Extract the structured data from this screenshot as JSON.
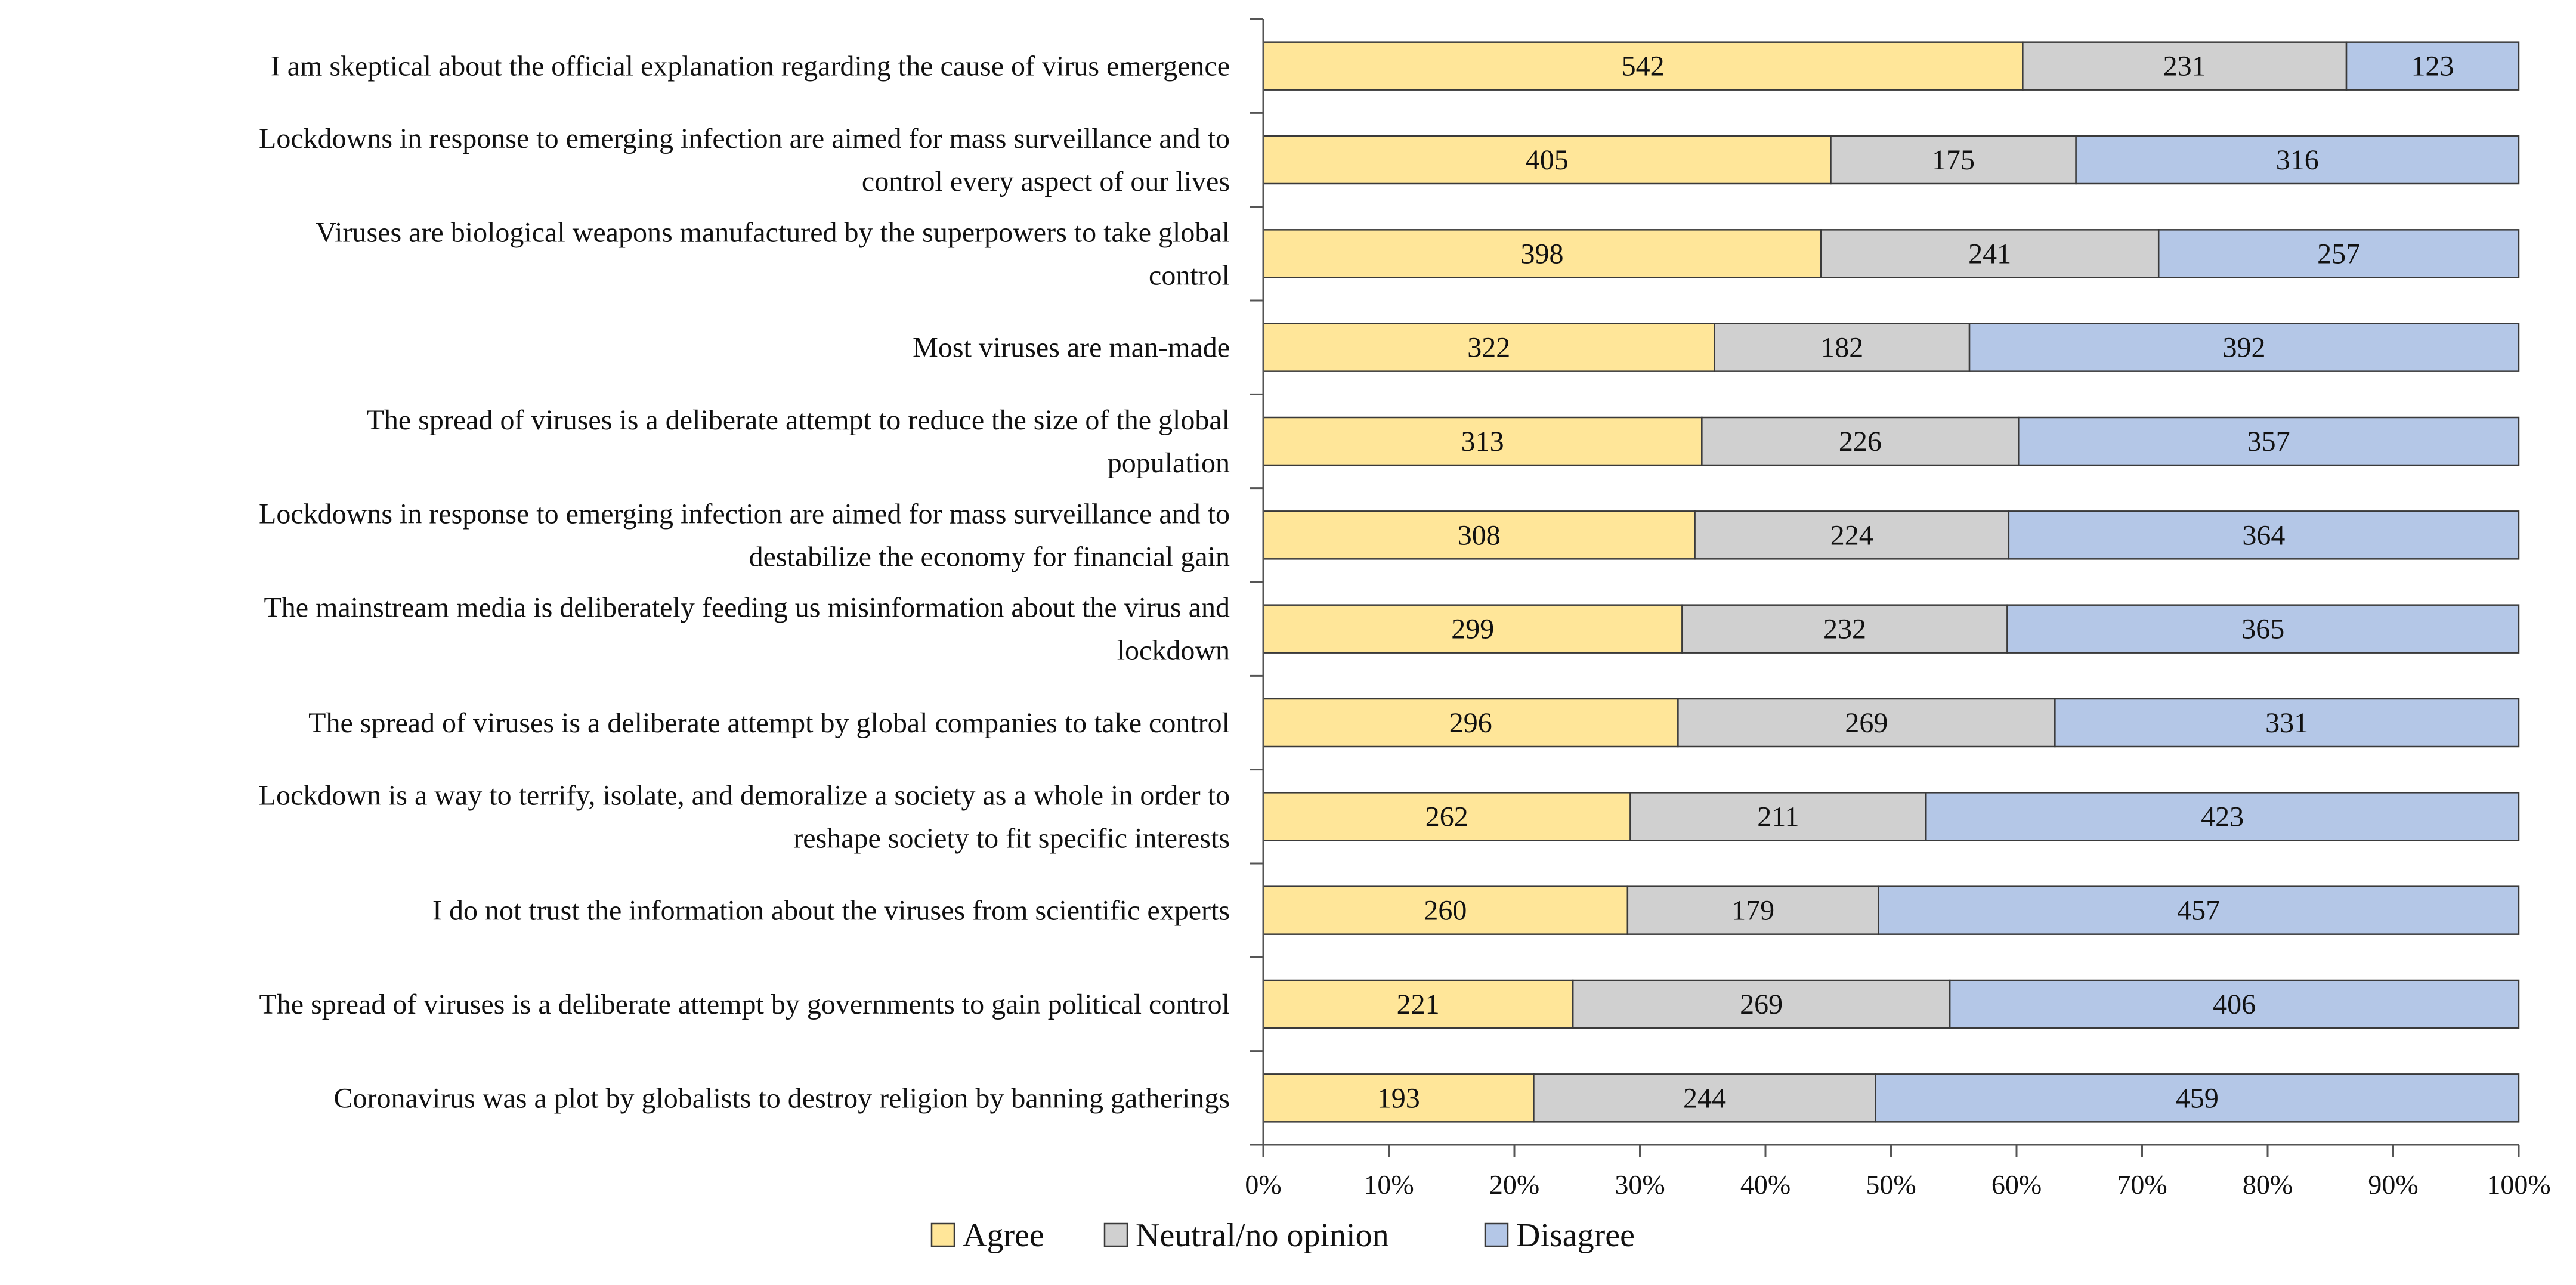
{
  "chart_data": {
    "type": "bar",
    "orientation": "horizontal",
    "stacking": "percent",
    "title": "",
    "xlabel": "",
    "ylabel": "",
    "xlim": [
      0,
      100
    ],
    "x_ticks": [
      "0%",
      "10%",
      "20%",
      "30%",
      "40%",
      "50%",
      "60%",
      "70%",
      "80%",
      "90%",
      "100%"
    ],
    "grid": false,
    "legend_position": "bottom",
    "categories": [
      [
        "I am skeptical about the official explanation regarding the cause of virus emergence"
      ],
      [
        "Lockdowns in response to emerging infection are aimed for mass surveillance and to",
        "control every aspect of our lives"
      ],
      [
        "Viruses are biological weapons manufactured by the superpowers to take global",
        "control"
      ],
      [
        "Most viruses are man-made"
      ],
      [
        "The spread of viruses is a deliberate attempt to reduce the size of the global",
        "population"
      ],
      [
        "Lockdowns in response to emerging infection are aimed for mass surveillance and to",
        "destabilize the economy for financial gain"
      ],
      [
        "The mainstream media is deliberately feeding us misinformation about the virus and",
        "lockdown"
      ],
      [
        "The spread of viruses is a deliberate attempt by global companies to take control"
      ],
      [
        "Lockdown is a way to terrify, isolate, and demoralize a society as a whole in order to",
        "reshape society to fit specific interests"
      ],
      [
        "I do not trust the information about the viruses from scientific experts"
      ],
      [
        "The spread of viruses is a deliberate attempt by governments to gain political control"
      ],
      [
        "Coronavirus was a plot by globalists to destroy religion by banning gatherings"
      ]
    ],
    "series": [
      {
        "name": "Agree",
        "color": "#FFE699",
        "values": [
          542,
          405,
          398,
          322,
          313,
          308,
          299,
          296,
          262,
          260,
          221,
          193
        ]
      },
      {
        "name": "Neutral/no opinion",
        "color": "#D0D0D0",
        "values": [
          231,
          175,
          241,
          182,
          226,
          224,
          232,
          269,
          211,
          179,
          269,
          244
        ]
      },
      {
        "name": "Disagree",
        "color": "#B4C7E7",
        "values": [
          123,
          316,
          257,
          392,
          357,
          364,
          365,
          331,
          423,
          457,
          406,
          459
        ]
      }
    ]
  }
}
